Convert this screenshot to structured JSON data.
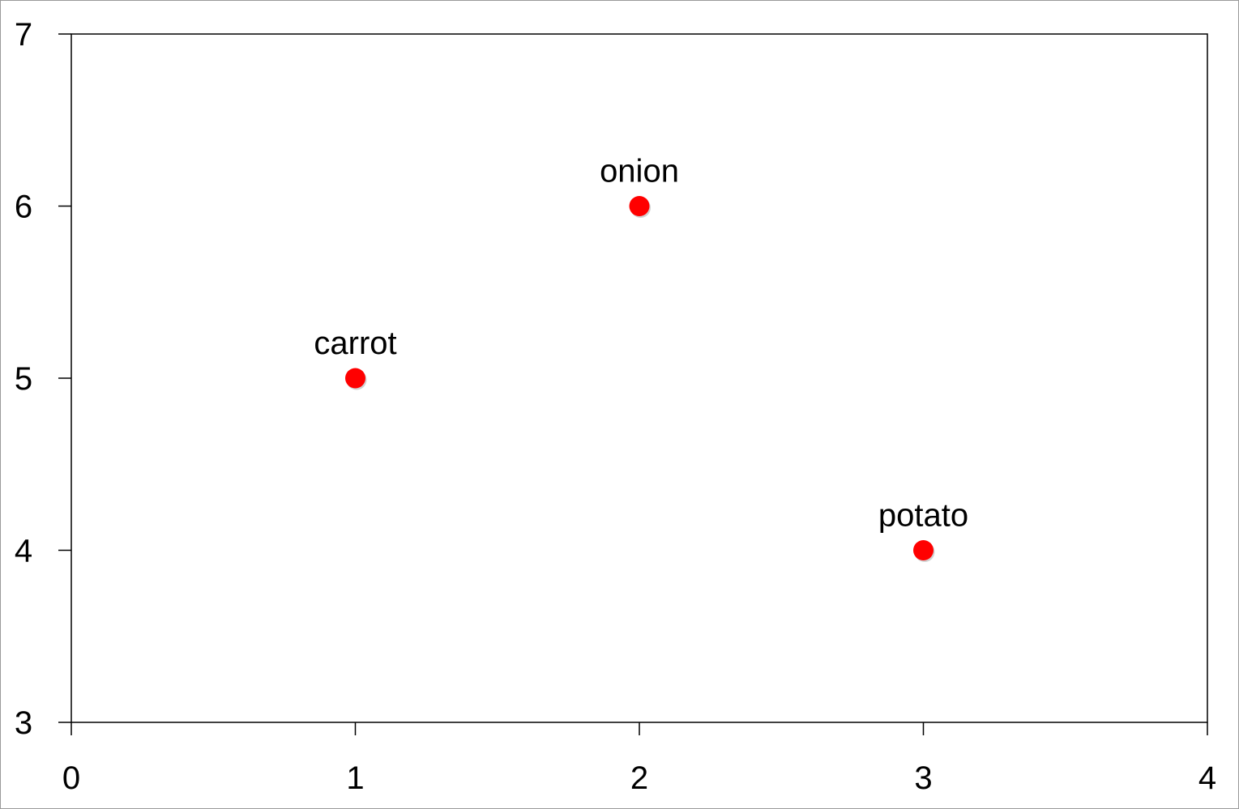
{
  "chart_data": {
    "type": "scatter",
    "title": "",
    "xlabel": "",
    "ylabel": "",
    "xlim": [
      0,
      4
    ],
    "ylim": [
      3,
      7
    ],
    "x_ticks": [
      "0",
      "1",
      "2",
      "3",
      "4"
    ],
    "y_ticks": [
      "3",
      "4",
      "5",
      "6",
      "7"
    ],
    "grid": false,
    "legend": false,
    "point_color": "#ff0000",
    "points": [
      {
        "label": "carrot",
        "x": 1,
        "y": 5
      },
      {
        "label": "onion",
        "x": 2,
        "y": 6
      },
      {
        "label": "potato",
        "x": 3,
        "y": 4
      }
    ]
  }
}
